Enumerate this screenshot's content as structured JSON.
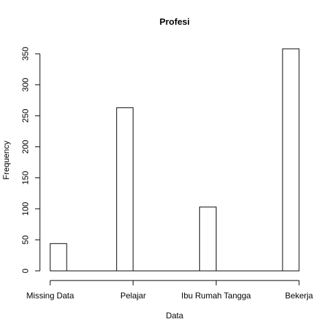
{
  "chart_data": {
    "type": "bar",
    "title": "Profesi",
    "xlabel": "Data",
    "ylabel": "Frequency",
    "categories": [
      "Missing Data",
      "Pelajar",
      "Ibu Rumah Tangga",
      "Bekerja"
    ],
    "values": [
      44,
      263,
      103,
      358
    ],
    "yticks": [
      0,
      50,
      100,
      150,
      200,
      250,
      300,
      350
    ],
    "ylim": [
      0,
      358
    ],
    "grid": false,
    "legend": "none",
    "colors": {
      "bar_fill": "#ffffff",
      "bar_stroke": "#000000",
      "text": "#000000"
    }
  }
}
